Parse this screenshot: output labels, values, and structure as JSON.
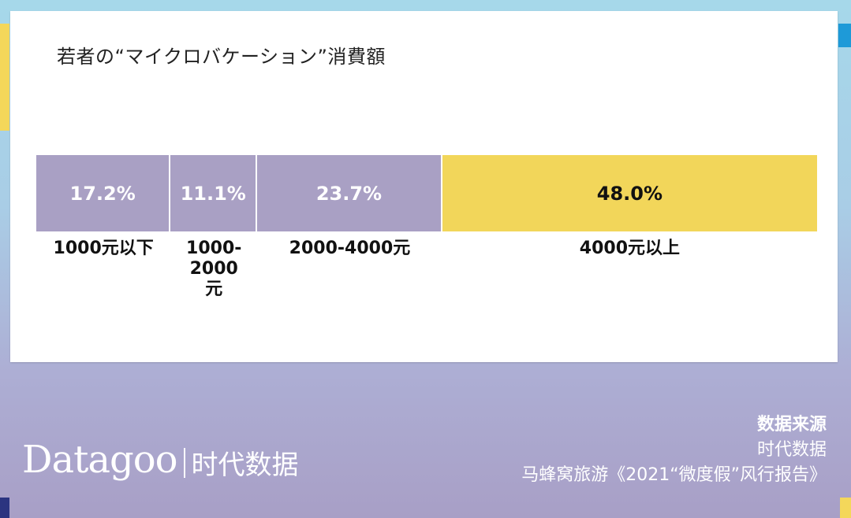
{
  "chart_data": {
    "type": "bar",
    "orientation": "horizontal-stacked",
    "title": "若者の“マイクロバケーション”消費額",
    "categories": [
      "1000元以下",
      "1000-2000元",
      "2000-4000元",
      "4000元以上"
    ],
    "values": [
      17.2,
      11.1,
      23.7,
      48.0
    ],
    "value_labels": [
      "17.2%",
      "11.1%",
      "23.7%",
      "48.0%"
    ],
    "unit": "%",
    "colors": [
      "#a9a0c4",
      "#a9a0c4",
      "#a9a0c4",
      "#f2d65a"
    ],
    "label_colors": [
      "#ffffff",
      "#ffffff",
      "#ffffff",
      "#111111"
    ],
    "grid": false,
    "legend": "none"
  },
  "footer": {
    "logo_latin": "Datagoo",
    "logo_cn": "时代数据",
    "source_heading": "数据来源",
    "source_lines": [
      "时代数据",
      "马蜂窝旅游《2021“微度假”风行报告》"
    ]
  },
  "colors": {
    "accent_yellow": "#f2d65a",
    "accent_purple": "#a9a0c4",
    "bg_blue": "#a6d8ea"
  }
}
